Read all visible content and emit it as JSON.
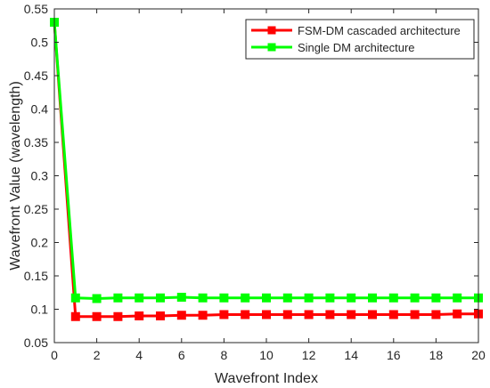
{
  "chart_data": {
    "type": "line",
    "title": "",
    "xlabel": "Wavefront Index",
    "ylabel": "Wavefront Value (wavelength)",
    "xlim": [
      0,
      20
    ],
    "ylim": [
      0.05,
      0.55
    ],
    "xticks": [
      0,
      2,
      4,
      6,
      8,
      10,
      12,
      14,
      16,
      18,
      20
    ],
    "yticks": [
      0.05,
      0.1,
      0.15,
      0.2,
      0.25,
      0.3,
      0.35,
      0.4,
      0.45,
      0.5,
      0.55
    ],
    "xtick_labels": [
      "0",
      "2",
      "4",
      "6",
      "8",
      "10",
      "12",
      "14",
      "16",
      "18",
      "20"
    ],
    "ytick_labels": [
      "0.05",
      "0.1",
      "0.15",
      "0.2",
      "0.25",
      "0.3",
      "0.35",
      "0.4",
      "0.45",
      "0.5",
      "0.55"
    ],
    "grid": false,
    "legend_position": "top-right",
    "x": [
      0,
      1,
      2,
      3,
      4,
      5,
      6,
      7,
      8,
      9,
      10,
      11,
      12,
      13,
      14,
      15,
      16,
      17,
      18,
      19,
      20
    ],
    "series": [
      {
        "name": "FSM-DM cascaded architecture",
        "color": "#ff0000",
        "marker": "square",
        "values": [
          0.53,
          0.089,
          0.089,
          0.089,
          0.09,
          0.09,
          0.091,
          0.091,
          0.092,
          0.092,
          0.092,
          0.092,
          0.092,
          0.092,
          0.092,
          0.092,
          0.092,
          0.092,
          0.092,
          0.093,
          0.093
        ]
      },
      {
        "name": "Single DM architecture",
        "color": "#00ff00",
        "marker": "square",
        "values": [
          0.53,
          0.117,
          0.116,
          0.117,
          0.117,
          0.117,
          0.118,
          0.117,
          0.117,
          0.117,
          0.117,
          0.117,
          0.117,
          0.117,
          0.117,
          0.117,
          0.117,
          0.117,
          0.117,
          0.117,
          0.117
        ]
      }
    ]
  }
}
